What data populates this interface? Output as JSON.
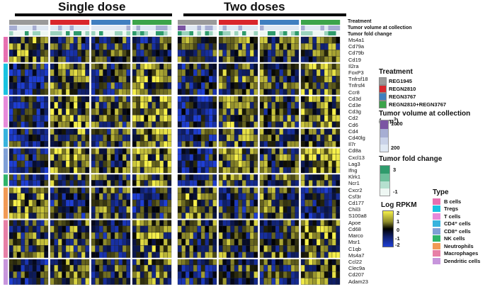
{
  "groups": [
    {
      "label": "Single dose"
    },
    {
      "label": "Two doses"
    }
  ],
  "tracks": {
    "treatment": "Treatment",
    "tumor_volume": "Tumor volume at collection",
    "fold_change": "Tumor fold change"
  },
  "genes": [
    "Ms4a1",
    "Cd79a",
    "Cd79b",
    "Cd19",
    "Il2ra",
    "FoxP3",
    "Tnfrsf18",
    "Tnfrsf4",
    "Ccr8",
    "Cd3d",
    "Cd3e",
    "Cd3g",
    "Cd2",
    "Cd6",
    "Cd4",
    "Cd40lg",
    "Il7r",
    "Cd8a",
    "Cxcl13",
    "Lag3",
    "Ifng",
    "Klrk1",
    "Ncr1",
    "Cxcr2",
    "Csf3r",
    "Cd177",
    "Chil3",
    "S100a8",
    "Apoe",
    "Cd68",
    "Marco",
    "Msr1",
    "C1qb",
    "Ms4a7",
    "Ccl22",
    "Clec9a",
    "Cd207",
    "Adam23"
  ],
  "legend_treatment": {
    "title": "Treatment",
    "items": [
      {
        "label": "REG1945",
        "color": "#9a9a9a"
      },
      {
        "label": "REGN2810",
        "color": "#d9262c"
      },
      {
        "label": "REGN3767",
        "color": "#3f7fc0"
      },
      {
        "label": "REGN2810+REGN3767",
        "color": "#3ca44a"
      }
    ]
  },
  "legend_volume": {
    "title": "Tumor volume at collection (mm",
    "title_sup": "3",
    "title_end": ")",
    "max": "1000",
    "min": "200",
    "colors": [
      "#7b55a3",
      "#a7aed3",
      "#dfe8f3"
    ]
  },
  "legend_fold": {
    "title": "Tumor fold change",
    "max": "3",
    "min": "-1",
    "colors": [
      "#2f9b6c",
      "#9bd3bd",
      "#eef7f3"
    ]
  },
  "legend_rpkm": {
    "title": "Log RPKM",
    "ticks": [
      "2",
      "1",
      "0",
      "-1",
      "-2"
    ]
  },
  "legend_type": {
    "title": "Type",
    "items": [
      {
        "label": "B cells",
        "color": "#e76fb0"
      },
      {
        "label": "Tregs",
        "color": "#19c2e0"
      },
      {
        "label": "T cells",
        "color": "#e689d9"
      },
      {
        "label": "CD4⁺ cells",
        "color": "#37b3dd"
      },
      {
        "label": "CD8⁺ cells",
        "color": "#7f9fd6"
      },
      {
        "label": "NK cells",
        "color": "#2fb46a"
      },
      {
        "label": "Neutrophils",
        "color": "#f19a55"
      },
      {
        "label": "Macrophages",
        "color": "#e77fa6"
      },
      {
        "label": "Dendritic cells",
        "color": "#c795dc"
      }
    ]
  },
  "chart_data": {
    "type": "heatmap",
    "value_label": "Log RPKM",
    "value_range": [
      -2,
      2
    ],
    "colors": {
      "low": "#1f3fd6",
      "mid": "#000000",
      "high": "#f6f04a"
    },
    "columns_per_group": [
      [
        10,
        10,
        10,
        10
      ],
      [
        10,
        10,
        10,
        10
      ]
    ],
    "column_groups": [
      "Single dose",
      "Two doses"
    ],
    "treatments": [
      "REG1945",
      "REGN2810",
      "REGN3767",
      "REGN2810+REGN3767"
    ],
    "rows": [
      "Ms4a1",
      "Cd79a",
      "Cd79b",
      "Cd19",
      "Il2ra",
      "FoxP3",
      "Tnfrsf18",
      "Tnfrsf4",
      "Ccr8",
      "Cd3d",
      "Cd3e",
      "Cd3g",
      "Cd2",
      "Cd6",
      "Cd4",
      "Cd40lg",
      "Il7r",
      "Cd8a",
      "Cxcl13",
      "Lag3",
      "Ifng",
      "Klrk1",
      "Ncr1",
      "Cxcr2",
      "Csf3r",
      "Cd177",
      "Chil3",
      "S100a8",
      "Apoe",
      "Cd68",
      "Marco",
      "Msr1",
      "C1qb",
      "Ms4a7",
      "Ccl22",
      "Clec9a",
      "Cd207",
      "Adam23"
    ],
    "row_types": [
      "B cells",
      "B cells",
      "B cells",
      "B cells",
      "Tregs",
      "Tregs",
      "Tregs",
      "Tregs",
      "Tregs",
      "T cells",
      "T cells",
      "T cells",
      "T cells",
      "T cells",
      "CD4+ cells",
      "CD4+ cells",
      "CD4+ cells",
      "CD8+ cells",
      "CD8+ cells",
      "CD8+ cells",
      "CD8+ cells",
      "NK cells",
      "NK cells",
      "Neutrophils",
      "Neutrophils",
      "Neutrophils",
      "Neutrophils",
      "Neutrophils",
      "Macrophages",
      "Macrophages",
      "Macrophages",
      "Macrophages",
      "Macrophages",
      "Macrophages",
      "Dendritic cells",
      "Dendritic cells",
      "Dendritic cells",
      "Dendritic cells"
    ],
    "mean_by_block": {
      "columns": [
        "SD REG1945",
        "SD REGN2810",
        "SD REGN3767",
        "SD Combo",
        "TD REG1945",
        "TD REGN2810",
        "TD REGN3767",
        "TD Combo"
      ],
      "B cells": [
        0.5,
        -0.1,
        -0.2,
        -0.2,
        0.1,
        0.2,
        0.1,
        0.2
      ],
      "Tregs": [
        -0.7,
        0.5,
        -0.1,
        0.7,
        -0.6,
        0.3,
        0.1,
        0.6
      ],
      "T cells": [
        -0.9,
        0.7,
        0.0,
        0.9,
        -1.0,
        0.4,
        0.2,
        0.8
      ],
      "CD4+ cells": [
        -0.6,
        0.4,
        0.0,
        0.6,
        -0.5,
        0.3,
        0.1,
        0.5
      ],
      "CD8+ cells": [
        -0.8,
        0.8,
        0.0,
        1.0,
        -0.9,
        0.5,
        0.1,
        0.9
      ],
      "NK cells": [
        -0.5,
        0.3,
        0.0,
        0.5,
        -0.4,
        0.2,
        0.1,
        0.4
      ],
      "Neutrophils": [
        0.6,
        -0.5,
        0.1,
        -0.6,
        0.7,
        -0.4,
        0.2,
        -0.5
      ],
      "Macrophages": [
        0.1,
        0.2,
        -0.1,
        0.5,
        0.0,
        0.2,
        0.1,
        0.7
      ],
      "Dendritic cells": [
        -0.4,
        0.3,
        -0.1,
        0.4,
        -0.3,
        0.2,
        0.0,
        0.5
      ]
    }
  }
}
